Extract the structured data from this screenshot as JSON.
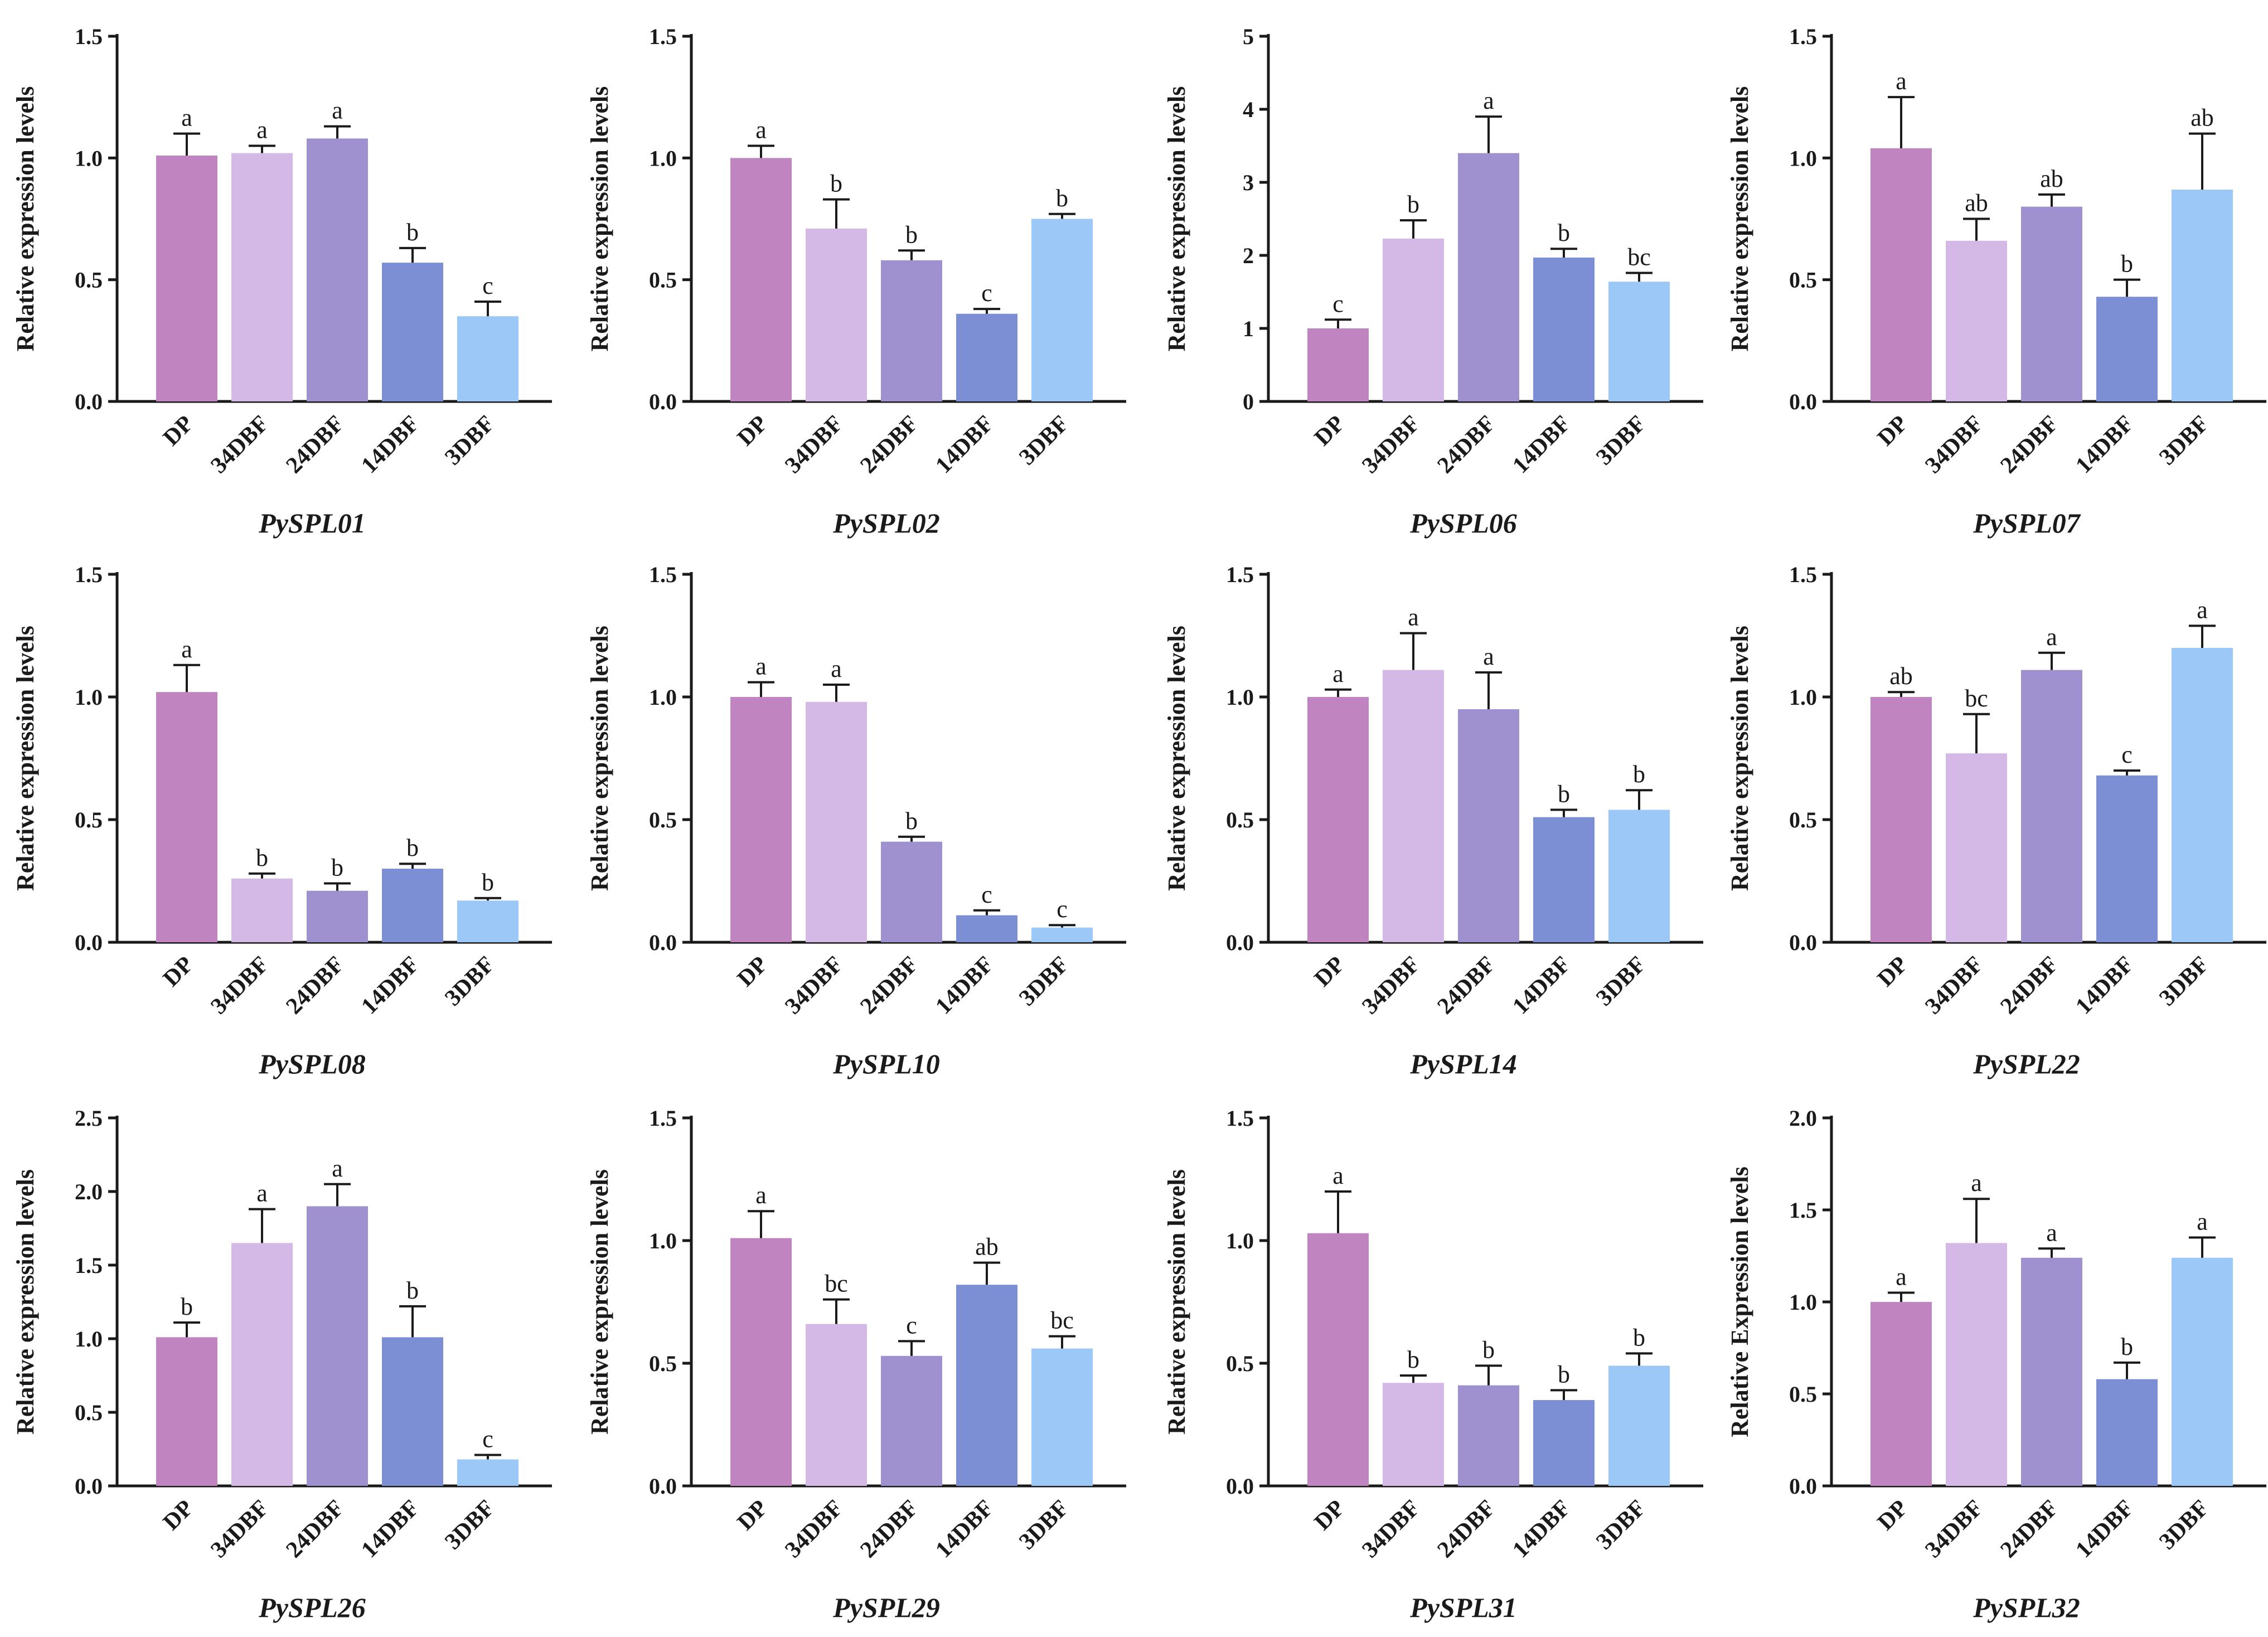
{
  "chart_data": [
    {
      "type": "bar",
      "title": "PySPL01",
      "ylabel": "Relative expression levels",
      "ylim": [
        0,
        1.5
      ],
      "yticks": [
        "0.0",
        "0.5",
        "1.0",
        "1.5"
      ],
      "categories": [
        "DP",
        "34DBF",
        "24DBF",
        "14DBF",
        "3DBF"
      ],
      "values": [
        1.01,
        1.02,
        1.08,
        0.57,
        0.35
      ],
      "errors": [
        0.09,
        0.03,
        0.05,
        0.06,
        0.06
      ],
      "letters": [
        "a",
        "a",
        "a",
        "b",
        "c"
      ]
    },
    {
      "type": "bar",
      "title": "PySPL02",
      "ylabel": "Relative expression levels",
      "ylim": [
        0,
        1.5
      ],
      "yticks": [
        "0.0",
        "0.5",
        "1.0",
        "1.5"
      ],
      "categories": [
        "DP",
        "34DBF",
        "24DBF",
        "14DBF",
        "3DBF"
      ],
      "values": [
        1.0,
        0.71,
        0.58,
        0.36,
        0.75
      ],
      "errors": [
        0.05,
        0.12,
        0.04,
        0.02,
        0.02
      ],
      "letters": [
        "a",
        "b",
        "b",
        "c",
        "b"
      ]
    },
    {
      "type": "bar",
      "title": "PySPL06",
      "ylabel": "Relative expression levels",
      "ylim": [
        0,
        5
      ],
      "yticks": [
        "0",
        "1",
        "2",
        "3",
        "4",
        "5"
      ],
      "categories": [
        "DP",
        "34DBF",
        "24DBF",
        "14DBF",
        "3DBF"
      ],
      "values": [
        1.0,
        2.23,
        3.4,
        1.97,
        1.64
      ],
      "errors": [
        0.12,
        0.25,
        0.5,
        0.12,
        0.12
      ],
      "letters": [
        "c",
        "b",
        "a",
        "b",
        "bc"
      ]
    },
    {
      "type": "bar",
      "title": "PySPL07",
      "ylabel": "Relative expression levels",
      "ylim": [
        0,
        1.5
      ],
      "yticks": [
        "0.0",
        "0.5",
        "1.0",
        "1.5"
      ],
      "categories": [
        "DP",
        "34DBF",
        "24DBF",
        "14DBF",
        "3DBF"
      ],
      "values": [
        1.04,
        0.66,
        0.8,
        0.43,
        0.87
      ],
      "errors": [
        0.21,
        0.09,
        0.05,
        0.07,
        0.23
      ],
      "letters": [
        "a",
        "ab",
        "ab",
        "b",
        "ab"
      ]
    },
    {
      "type": "bar",
      "title": "PySPL08",
      "ylabel": "Relative expression levels",
      "ylim": [
        0,
        1.5
      ],
      "yticks": [
        "0.0",
        "0.5",
        "1.0",
        "1.5"
      ],
      "categories": [
        "DP",
        "34DBF",
        "24DBF",
        "14DBF",
        "3DBF"
      ],
      "values": [
        1.02,
        0.26,
        0.21,
        0.3,
        0.17
      ],
      "errors": [
        0.11,
        0.02,
        0.03,
        0.02,
        0.01
      ],
      "letters": [
        "a",
        "b",
        "b",
        "b",
        "b"
      ]
    },
    {
      "type": "bar",
      "title": "PySPL10",
      "ylabel": "Relative expression levels",
      "ylim": [
        0,
        1.5
      ],
      "yticks": [
        "0.0",
        "0.5",
        "1.0",
        "1.5"
      ],
      "categories": [
        "DP",
        "34DBF",
        "24DBF",
        "14DBF",
        "3DBF"
      ],
      "values": [
        1.0,
        0.98,
        0.41,
        0.11,
        0.06
      ],
      "errors": [
        0.06,
        0.07,
        0.02,
        0.02,
        0.01
      ],
      "letters": [
        "a",
        "a",
        "b",
        "c",
        "c"
      ]
    },
    {
      "type": "bar",
      "title": "PySPL14",
      "ylabel": "Relative expression levels",
      "ylim": [
        0,
        1.5
      ],
      "yticks": [
        "0.0",
        "0.5",
        "1.0",
        "1.5"
      ],
      "categories": [
        "DP",
        "34DBF",
        "24DBF",
        "14DBF",
        "3DBF"
      ],
      "values": [
        1.0,
        1.11,
        0.95,
        0.51,
        0.54
      ],
      "errors": [
        0.03,
        0.15,
        0.15,
        0.03,
        0.08
      ],
      "letters": [
        "a",
        "a",
        "a",
        "b",
        "b"
      ]
    },
    {
      "type": "bar",
      "title": "PySPL22",
      "ylabel": "Relative expression levels",
      "ylim": [
        0,
        1.5
      ],
      "yticks": [
        "0.0",
        "0.5",
        "1.0",
        "1.5"
      ],
      "categories": [
        "DP",
        "34DBF",
        "24DBF",
        "14DBF",
        "3DBF"
      ],
      "values": [
        1.0,
        0.77,
        1.11,
        0.68,
        1.2
      ],
      "errors": [
        0.02,
        0.16,
        0.07,
        0.02,
        0.09
      ],
      "letters": [
        "ab",
        "bc",
        "a",
        "c",
        "a"
      ]
    },
    {
      "type": "bar",
      "title": "PySPL26",
      "ylabel": "Relative expression levels",
      "ylim": [
        0,
        2.5
      ],
      "yticks": [
        "0.0",
        "0.5",
        "1.0",
        "1.5",
        "2.0",
        "2.5"
      ],
      "categories": [
        "DP",
        "34DBF",
        "24DBF",
        "14DBF",
        "3DBF"
      ],
      "values": [
        1.01,
        1.65,
        1.9,
        1.01,
        0.18
      ],
      "errors": [
        0.1,
        0.23,
        0.15,
        0.21,
        0.03
      ],
      "letters": [
        "b",
        "a",
        "a",
        "b",
        "c"
      ]
    },
    {
      "type": "bar",
      "title": "PySPL29",
      "ylabel": "Relative expression levels",
      "ylim": [
        0,
        1.5
      ],
      "yticks": [
        "0.0",
        "0.5",
        "1.0",
        "1.5"
      ],
      "categories": [
        "DP",
        "34DBF",
        "24DBF",
        "14DBF",
        "3DBF"
      ],
      "values": [
        1.01,
        0.66,
        0.53,
        0.82,
        0.56
      ],
      "errors": [
        0.11,
        0.1,
        0.06,
        0.09,
        0.05
      ],
      "letters": [
        "a",
        "bc",
        "c",
        "ab",
        "bc"
      ]
    },
    {
      "type": "bar",
      "title": "PySPL31",
      "ylabel": "Relative expression levels",
      "ylim": [
        0,
        1.5
      ],
      "yticks": [
        "0.0",
        "0.5",
        "1.0",
        "1.5"
      ],
      "categories": [
        "DP",
        "34DBF",
        "24DBF",
        "14DBF",
        "3DBF"
      ],
      "values": [
        1.03,
        0.42,
        0.41,
        0.35,
        0.49
      ],
      "errors": [
        0.17,
        0.03,
        0.08,
        0.04,
        0.05
      ],
      "letters": [
        "a",
        "b",
        "b",
        "b",
        "b"
      ]
    },
    {
      "type": "bar",
      "title": "PySPL32",
      "ylabel": "Relative Expression levels",
      "ylim": [
        0,
        2.0
      ],
      "yticks": [
        "0.0",
        "0.5",
        "1.0",
        "1.5",
        "2.0"
      ],
      "categories": [
        "DP",
        "34DBF",
        "24DBF",
        "14DBF",
        "3DBF"
      ],
      "values": [
        1.0,
        1.32,
        1.24,
        0.58,
        1.24
      ],
      "errors": [
        0.05,
        0.24,
        0.05,
        0.09,
        0.11
      ],
      "letters": [
        "a",
        "a",
        "a",
        "b",
        "a"
      ]
    }
  ],
  "colors": [
    "#c084c0",
    "#d4b8e6",
    "#9f91d0",
    "#7c8fd4",
    "#9cc8f8"
  ]
}
